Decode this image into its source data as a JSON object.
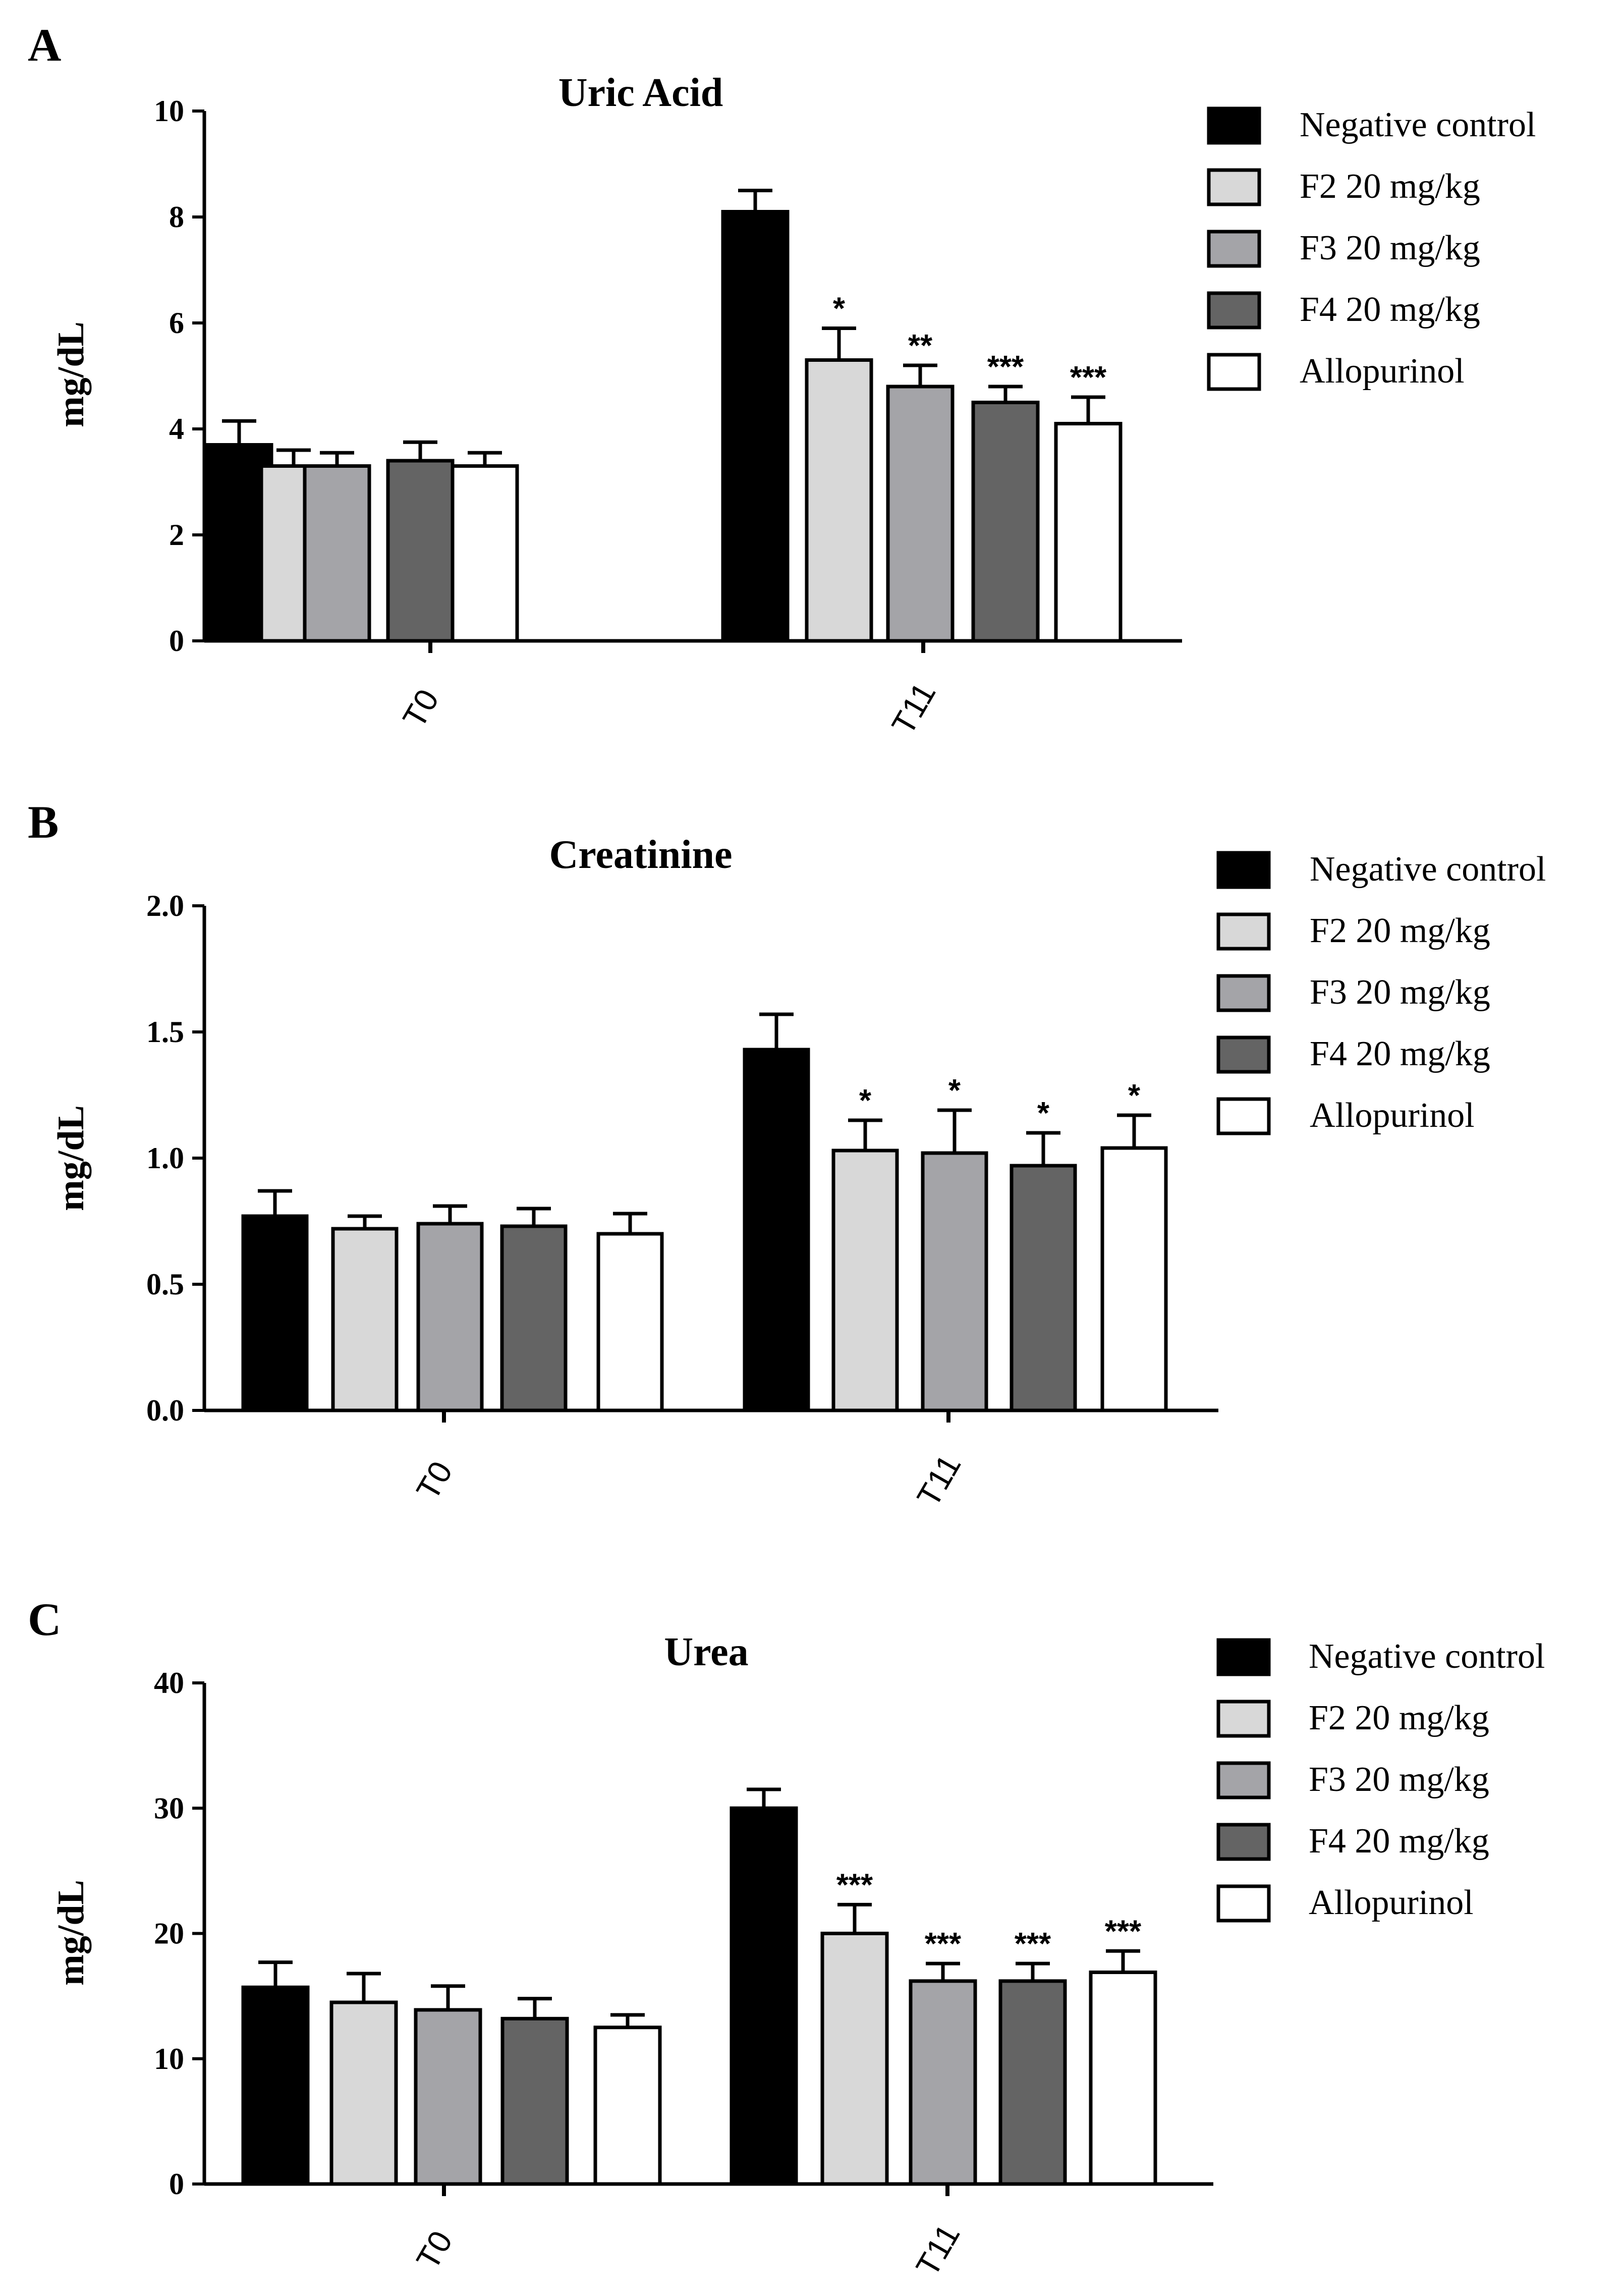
{
  "chart_data": [
    {
      "type": "bar",
      "panel": "A",
      "title": "Uric Acid",
      "xlabel": "",
      "ylabel": "mg/dL",
      "ylim": [
        0,
        10
      ],
      "yticks": [
        0,
        2,
        4,
        6,
        8,
        10
      ],
      "ytick_labels": [
        "0",
        "2",
        "4",
        "6",
        "8",
        "10"
      ],
      "categories": [
        "T0",
        "T11"
      ],
      "series": [
        {
          "name": "Negative control",
          "values": [
            3.7,
            8.1
          ],
          "errors": [
            0.45,
            0.4
          ],
          "significance": [
            "",
            ""
          ]
        },
        {
          "name": "F2 20 mg/kg",
          "values": [
            3.3,
            5.3
          ],
          "errors": [
            0.3,
            0.6
          ],
          "significance": [
            "",
            "*"
          ]
        },
        {
          "name": "F3 20 mg/kg",
          "values": [
            3.3,
            4.8
          ],
          "errors": [
            0.25,
            0.4
          ],
          "significance": [
            "",
            "**"
          ]
        },
        {
          "name": "F4 20 mg/kg",
          "values": [
            3.4,
            4.5
          ],
          "errors": [
            0.35,
            0.3
          ],
          "significance": [
            "",
            "***"
          ]
        },
        {
          "name": "Allopurinol",
          "values": [
            3.3,
            4.1
          ],
          "errors": [
            0.25,
            0.5
          ],
          "significance": [
            "",
            "***"
          ]
        }
      ]
    },
    {
      "type": "bar",
      "panel": "B",
      "title": "Creatinine",
      "xlabel": "",
      "ylabel": "mg/dL",
      "ylim": [
        0,
        2.0
      ],
      "yticks": [
        0,
        0.5,
        1.0,
        1.5,
        2.0
      ],
      "ytick_labels": [
        "0.0",
        "0.5",
        "1.0",
        "1.5",
        "2.0"
      ],
      "categories": [
        "T0",
        "T11"
      ],
      "series": [
        {
          "name": "Negative control",
          "values": [
            0.77,
            1.43
          ],
          "errors": [
            0.1,
            0.14
          ],
          "significance": [
            "",
            ""
          ]
        },
        {
          "name": "F2 20 mg/kg",
          "values": [
            0.72,
            1.03
          ],
          "errors": [
            0.05,
            0.12
          ],
          "significance": [
            "",
            "*"
          ]
        },
        {
          "name": "F3 20 mg/kg",
          "values": [
            0.74,
            1.02
          ],
          "errors": [
            0.07,
            0.17
          ],
          "significance": [
            "",
            "*"
          ]
        },
        {
          "name": "F4 20 mg/kg",
          "values": [
            0.73,
            0.97
          ],
          "errors": [
            0.07,
            0.13
          ],
          "significance": [
            "",
            "*"
          ]
        },
        {
          "name": "Allopurinol",
          "values": [
            0.7,
            1.04
          ],
          "errors": [
            0.08,
            0.13
          ],
          "significance": [
            "",
            "*"
          ]
        }
      ]
    },
    {
      "type": "bar",
      "panel": "C",
      "title": "Urea",
      "xlabel": "",
      "ylabel": "mg/dL",
      "ylim": [
        0,
        40
      ],
      "yticks": [
        0,
        10,
        20,
        30,
        40
      ],
      "ytick_labels": [
        "0",
        "10",
        "20",
        "30",
        "40"
      ],
      "categories": [
        "T0",
        "T11"
      ],
      "series": [
        {
          "name": "Negative control",
          "values": [
            15.7,
            30.0
          ],
          "errors": [
            2.0,
            1.5
          ],
          "significance": [
            "",
            ""
          ]
        },
        {
          "name": "F2 20 mg/kg",
          "values": [
            14.5,
            20.0
          ],
          "errors": [
            2.3,
            2.3
          ],
          "significance": [
            "",
            "***"
          ]
        },
        {
          "name": "F3 20 mg/kg",
          "values": [
            13.9,
            16.2
          ],
          "errors": [
            1.9,
            1.4
          ],
          "significance": [
            "",
            "***"
          ]
        },
        {
          "name": "F4 20 mg/kg",
          "values": [
            13.2,
            16.2
          ],
          "errors": [
            1.6,
            1.4
          ],
          "significance": [
            "",
            "***"
          ]
        },
        {
          "name": "Allopurinol",
          "values": [
            12.5,
            16.9
          ],
          "errors": [
            1.0,
            1.7
          ],
          "significance": [
            "",
            "***"
          ]
        }
      ]
    }
  ],
  "colors": {
    "series": [
      "#000000",
      "#d8d8d8",
      "#a4a4a8",
      "#646464",
      "#ffffff"
    ],
    "axis": "#000000",
    "stroke": "#000000"
  }
}
